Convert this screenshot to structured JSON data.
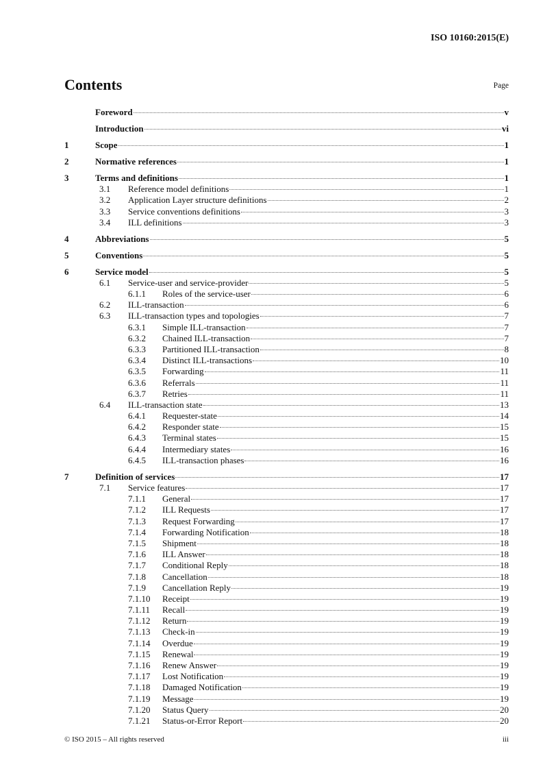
{
  "header": {
    "doc_id": "ISO 10160:2015(E)"
  },
  "title": "Contents",
  "page_label": "Page",
  "toc": [
    {
      "level": 0,
      "num": "",
      "text": "Foreword",
      "page": "v"
    },
    {
      "level": 0,
      "num": "",
      "text": "Introduction",
      "page": "vi"
    },
    {
      "level": 0,
      "num": "1",
      "text": "Scope",
      "page": "1"
    },
    {
      "level": 0,
      "num": "2",
      "text": "Normative references",
      "page": "1"
    },
    {
      "level": 0,
      "num": "3",
      "text": "Terms and definitions",
      "page": "1"
    },
    {
      "level": 1,
      "num": "3.1",
      "text": "Reference model definitions",
      "page": "1"
    },
    {
      "level": 1,
      "num": "3.2",
      "text": "Application Layer structure definitions",
      "page": "2"
    },
    {
      "level": 1,
      "num": "3.3",
      "text": "Service conventions definitions",
      "page": "3"
    },
    {
      "level": 1,
      "num": "3.4",
      "text": "ILL definitions",
      "page": "3"
    },
    {
      "level": 0,
      "num": "4",
      "text": "Abbreviations",
      "page": "5"
    },
    {
      "level": 0,
      "num": "5",
      "text": "Conventions",
      "page": "5"
    },
    {
      "level": 0,
      "num": "6",
      "text": "Service model",
      "page": "5"
    },
    {
      "level": 1,
      "num": "6.1",
      "text": "Service-user and service-provider",
      "page": "5"
    },
    {
      "level": 2,
      "num": "6.1.1",
      "text": "Roles of the service-user",
      "page": "6"
    },
    {
      "level": 1,
      "num": "6.2",
      "text": "ILL-transaction",
      "page": "6"
    },
    {
      "level": 1,
      "num": "6.3",
      "text": "ILL-transaction types and topologies",
      "page": "7"
    },
    {
      "level": 2,
      "num": "6.3.1",
      "text": "Simple ILL-transaction",
      "page": "7"
    },
    {
      "level": 2,
      "num": "6.3.2",
      "text": "Chained ILL-transaction",
      "page": "7"
    },
    {
      "level": 2,
      "num": "6.3.3",
      "text": "Partitioned ILL-transaction",
      "page": "8"
    },
    {
      "level": 2,
      "num": "6.3.4",
      "text": "Distinct ILL-transactions",
      "page": "10"
    },
    {
      "level": 2,
      "num": "6.3.5",
      "text": "Forwarding",
      "page": "11"
    },
    {
      "level": 2,
      "num": "6.3.6",
      "text": "Referrals",
      "page": "11"
    },
    {
      "level": 2,
      "num": "6.3.7",
      "text": "Retries",
      "page": "11"
    },
    {
      "level": 1,
      "num": "6.4",
      "text": "ILL-transaction state",
      "page": "13"
    },
    {
      "level": 2,
      "num": "6.4.1",
      "text": "Requester-state",
      "page": "14"
    },
    {
      "level": 2,
      "num": "6.4.2",
      "text": "Responder state",
      "page": "15"
    },
    {
      "level": 2,
      "num": "6.4.3",
      "text": "Terminal states",
      "page": "15"
    },
    {
      "level": 2,
      "num": "6.4.4",
      "text": "Intermediary states",
      "page": "16"
    },
    {
      "level": 2,
      "num": "6.4.5",
      "text": "ILL-transaction phases",
      "page": "16"
    },
    {
      "level": 0,
      "num": "7",
      "text": "Definition of services",
      "page": "17"
    },
    {
      "level": 1,
      "num": "7.1",
      "text": "Service features",
      "page": "17"
    },
    {
      "level": 2,
      "num": "7.1.1",
      "text": "General",
      "page": "17"
    },
    {
      "level": 2,
      "num": "7.1.2",
      "text": "ILL Requests",
      "page": "17"
    },
    {
      "level": 2,
      "num": "7.1.3",
      "text": "Request Forwarding",
      "page": "17"
    },
    {
      "level": 2,
      "num": "7.1.4",
      "text": "Forwarding Notification",
      "page": "18"
    },
    {
      "level": 2,
      "num": "7.1.5",
      "text": "Shipment",
      "page": "18"
    },
    {
      "level": 2,
      "num": "7.1.6",
      "text": "ILL Answer",
      "page": "18"
    },
    {
      "level": 2,
      "num": "7.1.7",
      "text": "Conditional Reply",
      "page": "18"
    },
    {
      "level": 2,
      "num": "7.1.8",
      "text": "Cancellation",
      "page": "18"
    },
    {
      "level": 2,
      "num": "7.1.9",
      "text": "Cancellation Reply",
      "page": "19"
    },
    {
      "level": 2,
      "num": "7.1.10",
      "text": "Receipt",
      "page": "19"
    },
    {
      "level": 2,
      "num": "7.1.11",
      "text": "Recall",
      "page": "19"
    },
    {
      "level": 2,
      "num": "7.1.12",
      "text": "Return",
      "page": "19"
    },
    {
      "level": 2,
      "num": "7.1.13",
      "text": "Check-in",
      "page": "19"
    },
    {
      "level": 2,
      "num": "7.1.14",
      "text": "Overdue",
      "page": "19"
    },
    {
      "level": 2,
      "num": "7.1.15",
      "text": "Renewal",
      "page": "19"
    },
    {
      "level": 2,
      "num": "7.1.16",
      "text": "Renew Answer",
      "page": "19"
    },
    {
      "level": 2,
      "num": "7.1.17",
      "text": "Lost Notification",
      "page": "19"
    },
    {
      "level": 2,
      "num": "7.1.18",
      "text": "Damaged Notification",
      "page": "19"
    },
    {
      "level": 2,
      "num": "7.1.19",
      "text": "Message",
      "page": "19"
    },
    {
      "level": 2,
      "num": "7.1.20",
      "text": "Status Query",
      "page": "20"
    },
    {
      "level": 2,
      "num": "7.1.21",
      "text": "Status-or-Error Report",
      "page": "20"
    }
  ],
  "footer": {
    "copyright": "© ISO 2015 – All rights reserved",
    "page": "iii"
  }
}
